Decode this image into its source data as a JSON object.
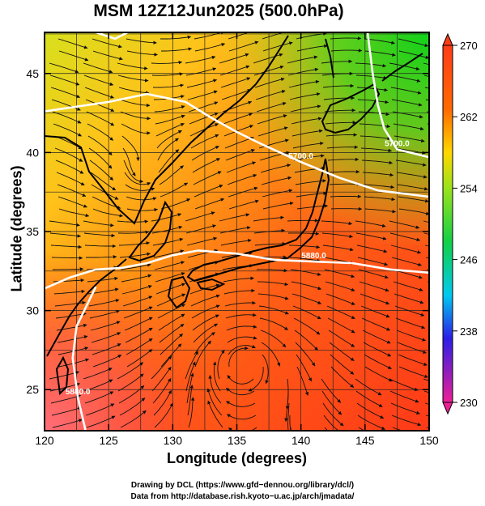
{
  "title": "MSM 12Z12Jun2025 (500.0hPa)",
  "x_axis": {
    "label": "Longitude (degrees)",
    "range": [
      120,
      150
    ],
    "ticks": [
      "120",
      "125",
      "130",
      "135",
      "140",
      "145",
      "150"
    ]
  },
  "y_axis": {
    "label": "Latitude  (degrees)",
    "range": [
      22.4,
      47.6
    ],
    "ticks": [
      "25",
      "30",
      "35",
      "40",
      "45"
    ]
  },
  "colorbar": {
    "ticks": [
      "270",
      "262",
      "254",
      "246",
      "238",
      "230"
    ],
    "min": 230,
    "max": 270,
    "colors": [
      "#ee1f96",
      "#2b1fe6",
      "#00c9f0",
      "#13d046",
      "#9be21c",
      "#ffd700",
      "#ff6a00",
      "#ff3c19"
    ]
  },
  "contours": [
    {
      "label": "5700.0",
      "points": [
        [
          120.0,
          42.6
        ],
        [
          125,
          43.2
        ],
        [
          128,
          43.7
        ],
        [
          131,
          43.2
        ],
        [
          133,
          42.2
        ],
        [
          135,
          41.3
        ],
        [
          137,
          40.5
        ],
        [
          140,
          39.4
        ],
        [
          143,
          38.4
        ],
        [
          146,
          37.6
        ],
        [
          150,
          37.2
        ]
      ]
    },
    {
      "label": "5700.0",
      "points": [
        [
          145.2,
          47.6
        ],
        [
          145.6,
          45
        ],
        [
          146,
          43
        ],
        [
          146.5,
          41.5
        ],
        [
          147.5,
          40.2
        ],
        [
          150,
          39.7
        ]
      ]
    },
    {
      "label": "5880.0",
      "points": [
        [
          120.0,
          31.4
        ],
        [
          122,
          32.1
        ],
        [
          124,
          32.6
        ],
        [
          126,
          32.7
        ],
        [
          128,
          33.0
        ],
        [
          130,
          33.5
        ],
        [
          132,
          33.8
        ],
        [
          135,
          33.6
        ],
        [
          138,
          33.2
        ],
        [
          141,
          33.1
        ],
        [
          144,
          33.0
        ],
        [
          147,
          32.6
        ],
        [
          150,
          32.4
        ]
      ]
    },
    {
      "label": "5880.0",
      "points": [
        [
          124.0,
          31.5
        ],
        [
          122.5,
          29
        ],
        [
          122.2,
          27
        ],
        [
          122.6,
          24.5
        ],
        [
          123.2,
          22.4
        ]
      ]
    },
    {
      "label": "",
      "points": [
        [
          124.0,
          47.6
        ],
        [
          125.5,
          47.2
        ],
        [
          126.5,
          47.6
        ]
      ]
    }
  ],
  "credits": {
    "line1": "Drawing by DCL (https://www.gfd−dennou.org/library/dcl/)",
    "line2": "Data from http://database.rish.kyoto−u.ac.jp/arch/jmadata/"
  }
}
